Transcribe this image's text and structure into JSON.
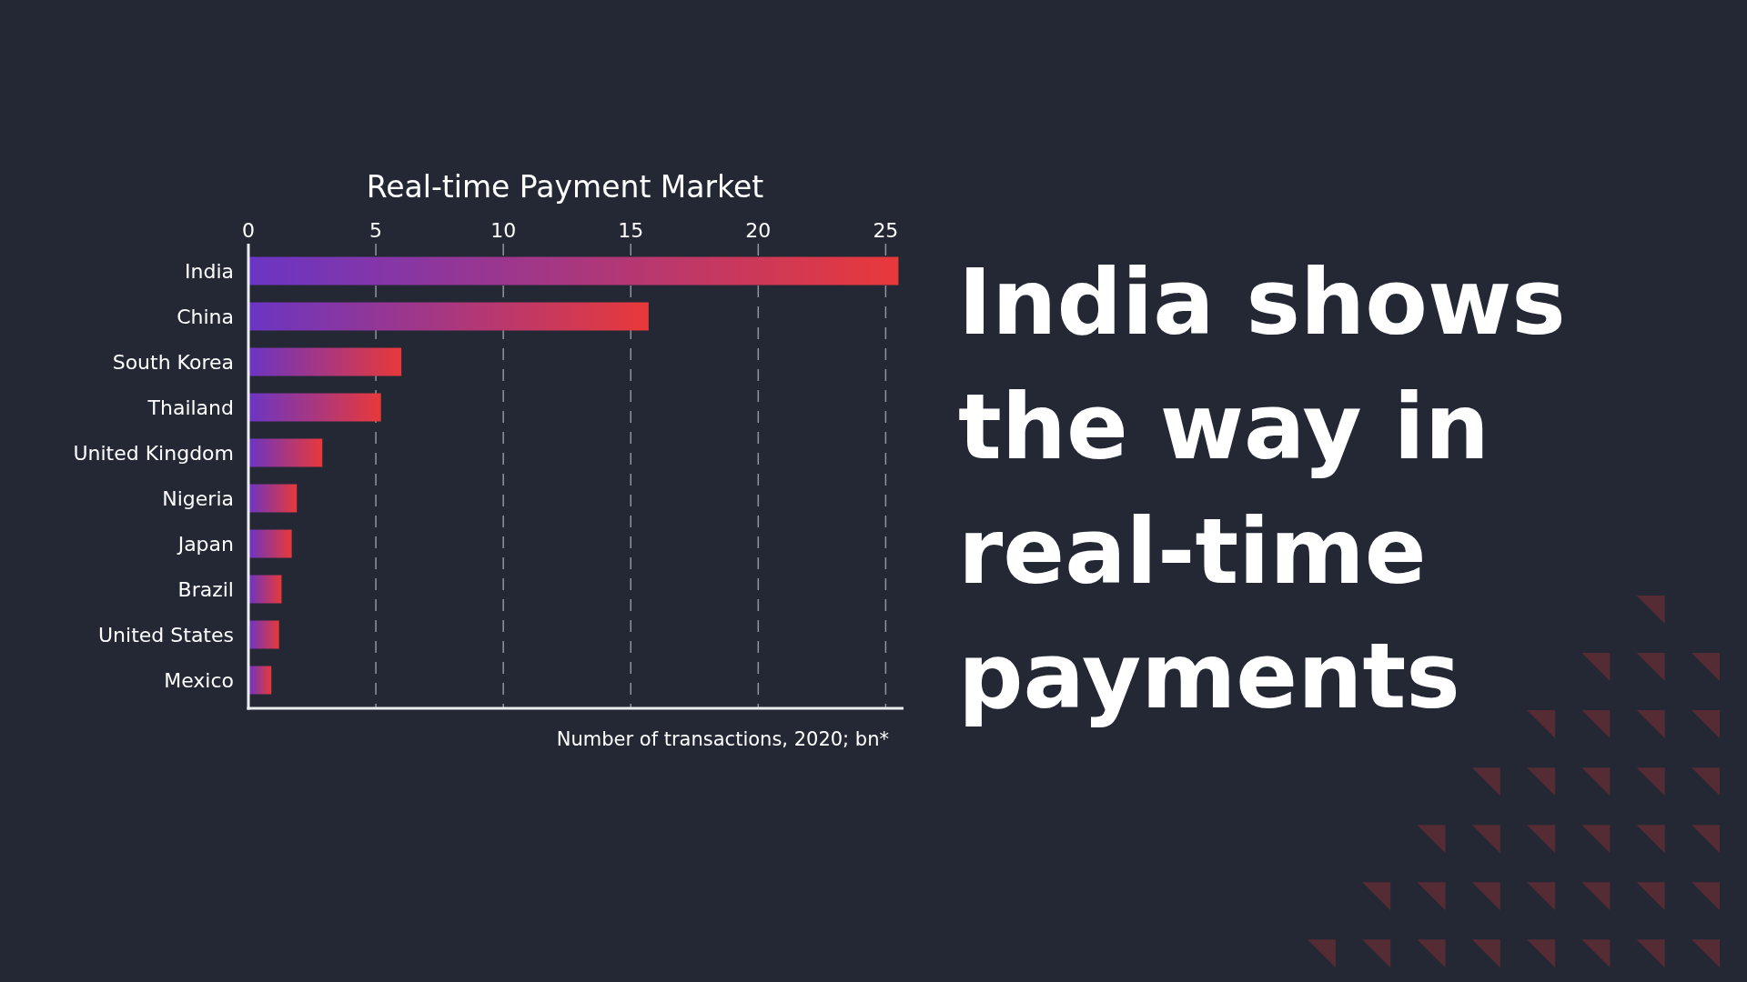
{
  "chart_data": {
    "type": "bar",
    "orientation": "horizontal",
    "title": "Real-time Payment Market",
    "xlabel": "Number of transactions, 2020; bn*",
    "categories": [
      "India",
      "China",
      "South Korea",
      "Thailand",
      "United Kingdom",
      "Nigeria",
      "Japan",
      "Brazil",
      "United States",
      "Mexico"
    ],
    "values": [
      25.5,
      15.7,
      6.0,
      5.2,
      2.9,
      1.9,
      1.7,
      1.3,
      1.2,
      0.9
    ],
    "color": "#e8393a",
    "xlim": [
      0,
      25.7
    ],
    "xticks": [
      0,
      5,
      10,
      15,
      20,
      25
    ],
    "grid": "x",
    "annotations": [
      "India shows the way in real-time payments"
    ]
  }
}
